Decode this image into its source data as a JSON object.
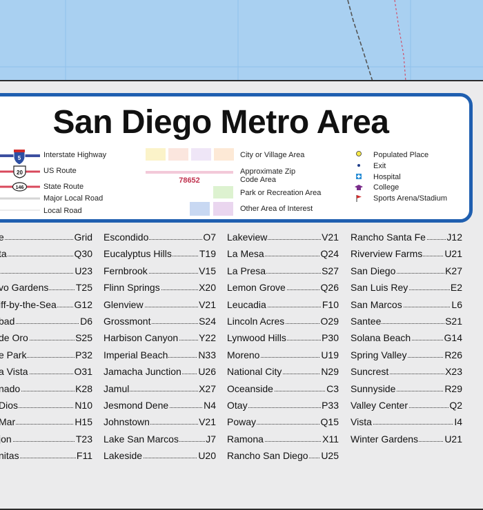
{
  "title": "San Diego Metro Area",
  "colors": {
    "water": "#a9d0f1",
    "frame": "#1f5fb0",
    "panel": "#ebebec"
  },
  "legend": {
    "interstate": {
      "label": "Interstate Highway",
      "shield": "5"
    },
    "us_route": {
      "label": "US Route",
      "shield": "20"
    },
    "state_route": {
      "label": "State Route",
      "shield": "146"
    },
    "major_local": {
      "label": "Major Local Road"
    },
    "local_road": {
      "label": "Local Road"
    },
    "city_area": {
      "label": "City or Village Area"
    },
    "zip_area": {
      "label": "Approximate Zip\nCode Area",
      "sample": "78652"
    },
    "park": {
      "label": "Park or Recreation Area"
    },
    "other_area": {
      "label": "Other Area of Interest"
    },
    "populated_place": {
      "label": "Populated Place"
    },
    "exit": {
      "label": "Exit"
    },
    "hospital": {
      "label": "Hospital"
    },
    "college": {
      "label": "College"
    },
    "sports": {
      "label": "Sports Arena/Stadium"
    }
  },
  "index": {
    "col1": [
      {
        "name": "e",
        "code": "Grid"
      },
      {
        "name": "ta",
        "code": "Q30"
      },
      {
        "name": "",
        "code": "U23"
      },
      {
        "name": "vo Gardens",
        "code": "T25"
      },
      {
        "name": "iff-by-the-Sea",
        "code": "G12"
      },
      {
        "name": "bad",
        "code": "D6"
      },
      {
        "name": " de Oro",
        "code": "S25"
      },
      {
        "name": "e Park",
        "code": "P32"
      },
      {
        "name": "a Vista",
        "code": "O31"
      },
      {
        "name": "nado",
        "code": "K28"
      },
      {
        "name": "Dios",
        "code": "N10"
      },
      {
        "name": "Mar",
        "code": "H15"
      },
      {
        "name": "jon",
        "code": "T23"
      },
      {
        "name": "nitas",
        "code": "F11"
      }
    ],
    "col2": [
      {
        "name": "Escondido",
        "code": "O7"
      },
      {
        "name": "Eucalyptus Hills",
        "code": "T19"
      },
      {
        "name": "Fernbrook",
        "code": "V15"
      },
      {
        "name": "Flinn Springs",
        "code": "X20"
      },
      {
        "name": "Glenview",
        "code": "V21"
      },
      {
        "name": "Grossmont",
        "code": "S24"
      },
      {
        "name": "Harbison Canyon",
        "code": "Y22"
      },
      {
        "name": "Imperial Beach",
        "code": "N33"
      },
      {
        "name": "Jamacha Junction",
        "code": "U26"
      },
      {
        "name": "Jamul",
        "code": "X27"
      },
      {
        "name": "Jesmond Dene",
        "code": "N4"
      },
      {
        "name": "Johnstown",
        "code": "V21"
      },
      {
        "name": "Lake San Marcos",
        "code": "J7"
      },
      {
        "name": "Lakeside",
        "code": "U20"
      }
    ],
    "col3": [
      {
        "name": "Lakeview",
        "code": "V21"
      },
      {
        "name": "La Mesa",
        "code": "Q24"
      },
      {
        "name": "La Presa",
        "code": "S27"
      },
      {
        "name": "Lemon Grove",
        "code": "Q26"
      },
      {
        "name": "Leucadia",
        "code": "F10"
      },
      {
        "name": "Lincoln Acres",
        "code": "O29"
      },
      {
        "name": "Lynwood Hills",
        "code": "P30"
      },
      {
        "name": "Moreno",
        "code": "U19"
      },
      {
        "name": "National City",
        "code": "N29"
      },
      {
        "name": "Oceanside",
        "code": "C3"
      },
      {
        "name": "Otay",
        "code": "P33"
      },
      {
        "name": "Poway",
        "code": "Q15"
      },
      {
        "name": "Ramona",
        "code": "X11"
      },
      {
        "name": "Rancho San Diego",
        "code": "U25"
      }
    ],
    "col4": [
      {
        "name": "Rancho Santa Fe",
        "code": "J12"
      },
      {
        "name": "Riverview Farms",
        "code": "U21"
      },
      {
        "name": "San Diego",
        "code": "K27"
      },
      {
        "name": "San Luis Rey",
        "code": "E2"
      },
      {
        "name": "San Marcos",
        "code": "L6"
      },
      {
        "name": "Santee",
        "code": "S21"
      },
      {
        "name": "Solana Beach",
        "code": "G14"
      },
      {
        "name": "Spring Valley",
        "code": "R26"
      },
      {
        "name": "Suncrest",
        "code": "X23"
      },
      {
        "name": "Sunnyside",
        "code": "R29"
      },
      {
        "name": "Valley Center",
        "code": "Q2"
      },
      {
        "name": "Vista",
        "code": "I4"
      },
      {
        "name": "Winter Gardens",
        "code": "U21"
      }
    ]
  }
}
